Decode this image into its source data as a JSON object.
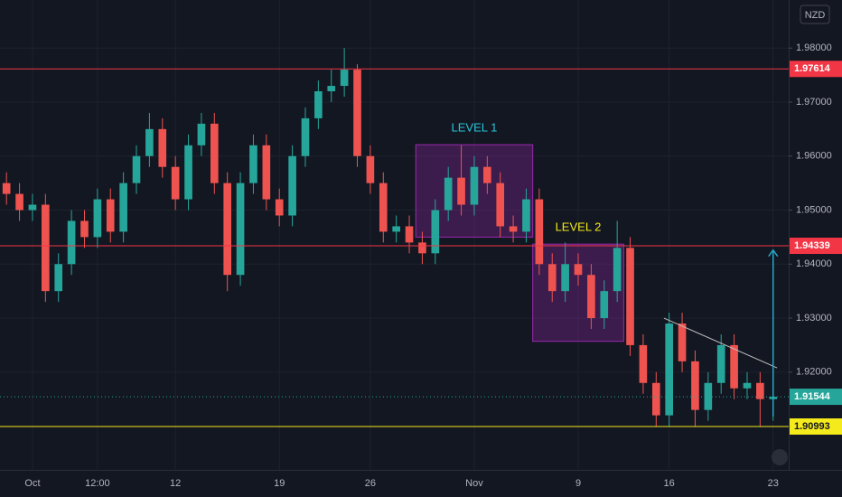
{
  "chart_data": {
    "type": "candlestick",
    "currency": "NZD",
    "categories": [
      null,
      null,
      "Oct",
      null,
      null,
      null,
      null,
      "12:00",
      null,
      null,
      null,
      null,
      null,
      "12",
      null,
      null,
      null,
      null,
      null,
      null,
      null,
      "19",
      null,
      null,
      null,
      null,
      null,
      null,
      "26",
      null,
      null,
      null,
      null,
      null,
      null,
      null,
      "Nov",
      null,
      null,
      null,
      null,
      null,
      null,
      null,
      "9",
      null,
      null,
      null,
      null,
      null,
      null,
      "16",
      null,
      null,
      null,
      null,
      null,
      null,
      null,
      "23"
    ],
    "open": [
      1.955,
      1.953,
      1.95,
      1.951,
      1.935,
      1.94,
      1.948,
      1.945,
      1.952,
      1.946,
      1.955,
      1.96,
      1.965,
      1.958,
      1.952,
      1.962,
      1.966,
      1.955,
      1.938,
      1.955,
      1.962,
      1.952,
      1.949,
      1.96,
      1.967,
      1.972,
      1.973,
      1.976,
      1.96,
      1.955,
      1.946,
      1.947,
      1.944,
      1.942,
      1.95,
      1.956,
      1.951,
      1.958,
      1.955,
      1.947,
      1.946,
      1.952,
      1.94,
      1.935,
      1.94,
      1.938,
      1.93,
      1.935,
      1.943,
      1.925,
      1.918,
      1.912,
      1.929,
      1.922,
      1.913,
      1.918,
      1.925,
      1.917,
      1.918,
      1.915
    ],
    "high": [
      1.957,
      1.955,
      1.953,
      1.953,
      1.942,
      1.95,
      1.95,
      1.954,
      1.954,
      1.957,
      1.962,
      1.968,
      1.967,
      1.96,
      1.964,
      1.968,
      1.968,
      1.957,
      1.957,
      1.964,
      1.964,
      1.954,
      1.962,
      1.969,
      1.974,
      1.976,
      1.98,
      1.977,
      1.962,
      1.957,
      1.949,
      1.949,
      1.946,
      1.952,
      1.958,
      1.962,
      1.96,
      1.96,
      1.957,
      1.949,
      1.954,
      1.954,
      1.942,
      1.944,
      1.942,
      1.94,
      1.937,
      1.948,
      1.945,
      1.927,
      1.92,
      1.931,
      1.931,
      1.924,
      1.92,
      1.927,
      1.927,
      1.92,
      1.92,
      1.921
    ],
    "low": [
      1.951,
      1.948,
      1.948,
      1.933,
      1.933,
      1.938,
      1.943,
      1.943,
      1.944,
      1.944,
      1.953,
      1.958,
      1.956,
      1.95,
      1.95,
      1.96,
      1.953,
      1.935,
      1.936,
      1.953,
      1.95,
      1.947,
      1.947,
      1.958,
      1.965,
      1.97,
      1.971,
      1.958,
      1.953,
      1.944,
      1.944,
      1.942,
      1.94,
      1.94,
      1.948,
      1.949,
      1.949,
      1.953,
      1.945,
      1.944,
      1.944,
      1.938,
      1.933,
      1.933,
      1.936,
      1.928,
      1.928,
      1.933,
      1.923,
      1.916,
      1.91,
      1.91,
      1.92,
      1.91,
      1.911,
      1.916,
      1.915,
      1.915,
      1.91,
      1.911
    ],
    "close": [
      1.953,
      1.95,
      1.951,
      1.935,
      1.94,
      1.948,
      1.945,
      1.952,
      1.946,
      1.955,
      1.96,
      1.965,
      1.958,
      1.952,
      1.962,
      1.966,
      1.955,
      1.938,
      1.955,
      1.962,
      1.952,
      1.949,
      1.96,
      1.967,
      1.972,
      1.973,
      1.976,
      1.96,
      1.955,
      1.946,
      1.947,
      1.944,
      1.942,
      1.95,
      1.956,
      1.951,
      1.958,
      1.955,
      1.947,
      1.946,
      1.952,
      1.94,
      1.935,
      1.94,
      1.938,
      1.93,
      1.935,
      1.943,
      1.925,
      1.918,
      1.912,
      1.929,
      1.922,
      1.913,
      1.918,
      1.925,
      1.917,
      1.918,
      1.915,
      1.91544
    ],
    "up_color": "#26a69a",
    "down_color": "#ef5350",
    "ylim": [
      1.9019,
      1.9889
    ],
    "yticks": [
      {
        "value": 1.92,
        "label": "1.92000"
      },
      {
        "value": 1.93,
        "label": "1.93000"
      },
      {
        "value": 1.94,
        "label": "1.94000"
      },
      {
        "value": 1.95,
        "label": "1.95000"
      },
      {
        "value": 1.96,
        "label": "1.96000"
      },
      {
        "value": 1.97,
        "label": "1.97000"
      },
      {
        "value": 1.98,
        "label": "1.98000"
      }
    ],
    "grid": true,
    "levels": [
      {
        "value": 1.97614,
        "color": "#f23645"
      },
      {
        "value": 1.94339,
        "color": "#f23645"
      },
      {
        "value": 1.90993,
        "color": "#f5ea1b"
      }
    ],
    "last_price": {
      "value": 1.91544,
      "color": "#26a69a"
    },
    "boxes": [
      {
        "label": "LEVEL 1",
        "label_color": "#26c6da",
        "x": [
          32,
          40
        ],
        "bottom": 1.945,
        "top": 1.9621
      },
      {
        "label": "LEVEL 2",
        "label_color": "#f5ea1b",
        "x": [
          41,
          47
        ],
        "bottom": 1.9257,
        "top": 1.9437
      }
    ],
    "trendline": {
      "x": [
        50.6,
        59.3
      ],
      "y": [
        1.93,
        1.9208
      ],
      "color": "#c0c0c0"
    },
    "arrow": {
      "x": 59,
      "y": [
        1.9118,
        1.9426
      ],
      "color": "#26a6c9"
    }
  }
}
